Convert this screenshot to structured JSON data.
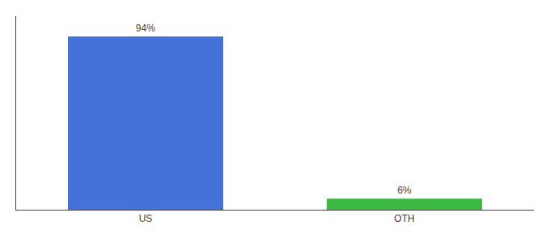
{
  "chart_data": {
    "type": "bar",
    "categories": [
      "US",
      "OTH"
    ],
    "values": [
      94,
      6
    ],
    "value_labels": [
      "94%",
      "6%"
    ],
    "data_labels": true,
    "colors": [
      "#4472d9",
      "#3cb943"
    ],
    "ylim": [
      0,
      105
    ],
    "tick_labels": "x",
    "grid": false
  }
}
